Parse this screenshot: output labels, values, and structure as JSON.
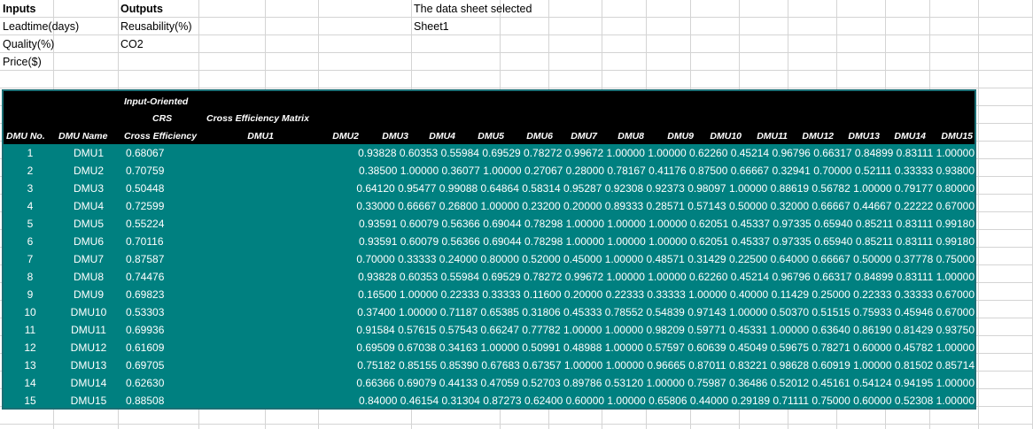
{
  "top": {
    "inputs_header": "Inputs",
    "outputs_header": "Outputs",
    "selected_label": "The data sheet selected",
    "selected_value": "Sheet1",
    "inputs": [
      "Leadtime(days)",
      "Quality(%)",
      "Price($)"
    ],
    "outputs": [
      "Reusability(%)",
      "CO2"
    ]
  },
  "table": {
    "header_orientation": "Input-Oriented",
    "header_crs": "CRS",
    "header_matrix": "Cross Efficiency Matrix",
    "col_dmu_no": "DMU No.",
    "col_dmu_name": "DMU Name",
    "col_cross_eff": "Cross Efficiency",
    "matrix_columns": [
      "DMU1",
      "DMU2",
      "DMU3",
      "DMU4",
      "DMU5",
      "DMU6",
      "DMU7",
      "DMU8",
      "DMU9",
      "DMU10",
      "DMU11",
      "DMU12",
      "DMU13",
      "DMU14",
      "DMU15"
    ],
    "rows": [
      {
        "no": "1",
        "name": "DMU1",
        "eff": "0.68067",
        "values": [
          "0.93828",
          "0.60353",
          "0.55984",
          "0.69529",
          "0.78272",
          "0.99672",
          "1.00000",
          "1.00000",
          "0.62260",
          "0.45214",
          "0.96796",
          "0.66317",
          "0.84899",
          "0.83111",
          "1.00000"
        ]
      },
      {
        "no": "2",
        "name": "DMU2",
        "eff": "0.70759",
        "values": [
          "0.38500",
          "1.00000",
          "0.36077",
          "1.00000",
          "0.27067",
          "0.28000",
          "0.78167",
          "0.41176",
          "0.87500",
          "0.66667",
          "0.32941",
          "0.70000",
          "0.52111",
          "0.33333",
          "0.93800"
        ]
      },
      {
        "no": "3",
        "name": "DMU3",
        "eff": "0.50448",
        "values": [
          "0.64120",
          "0.95477",
          "0.99088",
          "0.64864",
          "0.58314",
          "0.95287",
          "0.92308",
          "0.92373",
          "0.98097",
          "1.00000",
          "0.88619",
          "0.56782",
          "1.00000",
          "0.79177",
          "0.80000"
        ]
      },
      {
        "no": "4",
        "name": "DMU4",
        "eff": "0.72599",
        "values": [
          "0.33000",
          "0.66667",
          "0.26800",
          "1.00000",
          "0.23200",
          "0.20000",
          "0.89333",
          "0.28571",
          "0.57143",
          "0.50000",
          "0.32000",
          "0.66667",
          "0.44667",
          "0.22222",
          "0.67000"
        ]
      },
      {
        "no": "5",
        "name": "DMU5",
        "eff": "0.55224",
        "values": [
          "0.93591",
          "0.60079",
          "0.56366",
          "0.69044",
          "0.78298",
          "1.00000",
          "1.00000",
          "1.00000",
          "0.62051",
          "0.45337",
          "0.97335",
          "0.65940",
          "0.85211",
          "0.83111",
          "0.99180"
        ]
      },
      {
        "no": "6",
        "name": "DMU6",
        "eff": "0.70116",
        "values": [
          "0.93591",
          "0.60079",
          "0.56366",
          "0.69044",
          "0.78298",
          "1.00000",
          "1.00000",
          "1.00000",
          "0.62051",
          "0.45337",
          "0.97335",
          "0.65940",
          "0.85211",
          "0.83111",
          "0.99180"
        ]
      },
      {
        "no": "7",
        "name": "DMU7",
        "eff": "0.87587",
        "values": [
          "0.70000",
          "0.33333",
          "0.24000",
          "0.80000",
          "0.52000",
          "0.45000",
          "1.00000",
          "0.48571",
          "0.31429",
          "0.22500",
          "0.64000",
          "0.66667",
          "0.50000",
          "0.37778",
          "0.75000"
        ]
      },
      {
        "no": "8",
        "name": "DMU8",
        "eff": "0.74476",
        "values": [
          "0.93828",
          "0.60353",
          "0.55984",
          "0.69529",
          "0.78272",
          "0.99672",
          "1.00000",
          "1.00000",
          "0.62260",
          "0.45214",
          "0.96796",
          "0.66317",
          "0.84899",
          "0.83111",
          "1.00000"
        ]
      },
      {
        "no": "9",
        "name": "DMU9",
        "eff": "0.69823",
        "values": [
          "0.16500",
          "1.00000",
          "0.22333",
          "0.33333",
          "0.11600",
          "0.20000",
          "0.22333",
          "0.33333",
          "1.00000",
          "0.40000",
          "0.11429",
          "0.25000",
          "0.22333",
          "0.33333",
          "0.67000"
        ]
      },
      {
        "no": "10",
        "name": "DMU10",
        "eff": "0.53303",
        "values": [
          "0.37400",
          "1.00000",
          "0.71187",
          "0.65385",
          "0.31806",
          "0.45333",
          "0.78552",
          "0.54839",
          "0.97143",
          "1.00000",
          "0.50370",
          "0.51515",
          "0.75933",
          "0.45946",
          "0.67000"
        ]
      },
      {
        "no": "11",
        "name": "DMU11",
        "eff": "0.69936",
        "values": [
          "0.91584",
          "0.57615",
          "0.57543",
          "0.66247",
          "0.77782",
          "1.00000",
          "1.00000",
          "0.98209",
          "0.59771",
          "0.45331",
          "1.00000",
          "0.63640",
          "0.86190",
          "0.81429",
          "0.93750"
        ]
      },
      {
        "no": "12",
        "name": "DMU12",
        "eff": "0.61609",
        "values": [
          "0.69509",
          "0.67038",
          "0.34163",
          "1.00000",
          "0.50991",
          "0.48988",
          "1.00000",
          "0.57597",
          "0.60639",
          "0.45049",
          "0.59675",
          "0.78271",
          "0.60000",
          "0.45782",
          "1.00000"
        ]
      },
      {
        "no": "13",
        "name": "DMU13",
        "eff": "0.69705",
        "values": [
          "0.75182",
          "0.85155",
          "0.85390",
          "0.67683",
          "0.67357",
          "1.00000",
          "1.00000",
          "0.96665",
          "0.87011",
          "0.83221",
          "0.98628",
          "0.60919",
          "1.00000",
          "0.81502",
          "0.85714"
        ]
      },
      {
        "no": "14",
        "name": "DMU14",
        "eff": "0.62630",
        "values": [
          "0.66366",
          "0.69079",
          "0.44133",
          "0.47059",
          "0.52703",
          "0.89786",
          "0.53120",
          "1.00000",
          "0.75987",
          "0.36486",
          "0.52012",
          "0.45161",
          "0.54124",
          "0.94195",
          "1.00000"
        ]
      },
      {
        "no": "15",
        "name": "DMU15",
        "eff": "0.88508",
        "values": [
          "0.84000",
          "0.46154",
          "0.31304",
          "0.87273",
          "0.62400",
          "0.60000",
          "1.00000",
          "0.65806",
          "0.44000",
          "0.29189",
          "0.71111",
          "0.75000",
          "0.60000",
          "0.52308",
          "1.00000"
        ]
      }
    ]
  }
}
